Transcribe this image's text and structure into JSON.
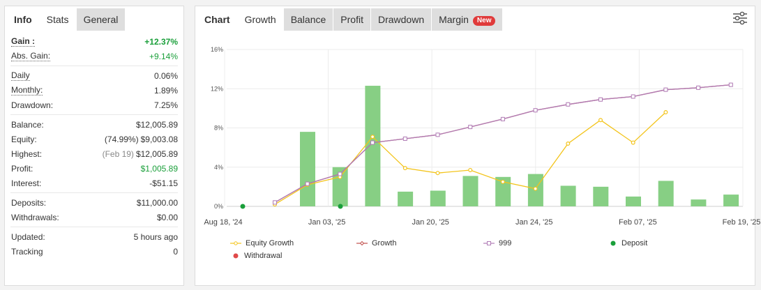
{
  "left_panel": {
    "tabs": [
      {
        "label": "Info"
      },
      {
        "label": "Stats"
      },
      {
        "label": "General"
      }
    ],
    "stats": {
      "gain": {
        "label": "Gain :",
        "value": "+12.37%"
      },
      "abs_gain": {
        "label": "Abs. Gain:",
        "value": "+9.14%"
      },
      "daily": {
        "label": "Daily",
        "value": "0.06%"
      },
      "monthly": {
        "label": "Monthly:",
        "value": "1.89%"
      },
      "drawdown": {
        "label": "Drawdown:",
        "value": "7.25%"
      },
      "balance": {
        "label": "Balance:",
        "value": "$12,005.89"
      },
      "equity": {
        "label": "Equity:",
        "prefix": "(74.99%)",
        "value": "$9,003.08"
      },
      "highest": {
        "label": "Highest:",
        "prefix": "(Feb 19)",
        "value": "$12,005.89"
      },
      "profit": {
        "label": "Profit:",
        "value": "$1,005.89"
      },
      "interest": {
        "label": "Interest:",
        "value": "-$51.15"
      },
      "deposits": {
        "label": "Deposits:",
        "value": "$11,000.00"
      },
      "withdrawals": {
        "label": "Withdrawals:",
        "value": "$0.00"
      },
      "updated": {
        "label": "Updated:",
        "value": "5 hours ago"
      },
      "tracking": {
        "label": "Tracking",
        "value": "0"
      }
    }
  },
  "right_panel": {
    "tabs": [
      {
        "label": "Chart"
      },
      {
        "label": "Growth"
      },
      {
        "label": "Balance"
      },
      {
        "label": "Profit"
      },
      {
        "label": "Drawdown"
      },
      {
        "label": "Margin"
      }
    ],
    "margin_badge": "New",
    "settings_icon": "sliders-icon"
  },
  "colors": {
    "green": "#1a9f3a",
    "bar": "#87cf84",
    "equity_line": "#f3c41b",
    "growth_line": "#c0504d",
    "series_999": "#b07cb6",
    "deposit": "#1a9f3a",
    "withdrawal": "#e04a4a"
  },
  "chart_data": {
    "type": "bar",
    "x_ticks": [
      "Aug 18, '24",
      "Jan 03, '25",
      "Jan 20, '25",
      "Jan 24, '25",
      "Feb 07, '25",
      "Feb 19, '25"
    ],
    "ylim": [
      0,
      16
    ],
    "y_ticks": [
      "0%",
      "4%",
      "8%",
      "12%",
      "16%"
    ],
    "grid": true,
    "bars": {
      "name": "",
      "values": [
        7.6,
        4.0,
        12.3,
        1.5,
        1.6,
        3.1,
        3.0,
        3.3,
        2.1,
        2.0,
        1.0,
        2.6,
        0.7,
        1.2
      ]
    },
    "series": [
      {
        "name": "Equity Growth",
        "values": [
          0.2,
          2.2,
          3.0,
          7.1,
          3.9,
          3.4,
          3.7,
          2.5,
          1.8,
          6.4,
          8.8,
          6.5,
          9.6
        ]
      },
      {
        "name": "Growth",
        "values": [
          0.4,
          2.3,
          3.3,
          6.5,
          6.9,
          7.3,
          8.1,
          8.9,
          9.8,
          10.4,
          10.9,
          11.2,
          11.9,
          12.1,
          12.4
        ]
      },
      {
        "name": "999",
        "values": [
          0.4,
          2.3,
          3.3,
          6.5,
          6.9,
          7.3,
          8.1,
          8.9,
          9.8,
          10.4,
          10.9,
          11.2,
          11.9,
          12.1,
          12.4
        ]
      }
    ],
    "deposits": [
      0.0,
      0.0
    ],
    "legend": [
      "Equity Growth",
      "Growth",
      "999",
      "Deposit",
      "Withdrawal"
    ]
  }
}
